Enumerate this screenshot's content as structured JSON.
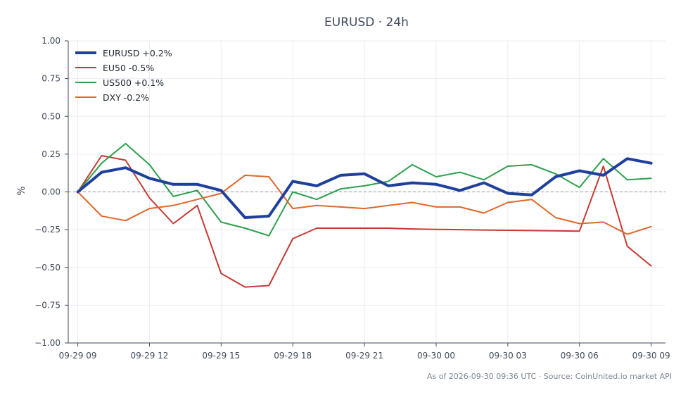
{
  "chart_data": {
    "type": "line",
    "title": "EURUSD · 24h",
    "xlabel": "",
    "ylabel": "%",
    "ylim": [
      -1.0,
      1.0
    ],
    "xlim": [
      "2026-09-29 08:36",
      "2026-09-30 09:36"
    ],
    "yticks": [
      1.0,
      0.75,
      0.5,
      0.25,
      0.0,
      -0.25,
      -0.5,
      -0.75,
      -1.0
    ],
    "ytick_labels": [
      "1.00",
      "0.75",
      "0.50",
      "0.25",
      "0.00",
      "−0.25",
      "−0.50",
      "−0.75",
      "−1.00"
    ],
    "xticks": [
      "2026-09-29 09:00",
      "2026-09-29 12:00",
      "2026-09-29 15:00",
      "2026-09-29 18:00",
      "2026-09-29 21:00",
      "2026-09-30 00:00",
      "2026-09-30 03:00",
      "2026-09-30 06:00",
      "2026-09-30 09:00"
    ],
    "xtick_labels": [
      "09-29 09",
      "09-29 12",
      "09-29 15",
      "09-29 18",
      "09-29 21",
      "09-30 00",
      "09-30 03",
      "09-30 06",
      "09-30 09"
    ],
    "x": [
      "2026-09-29 09:00",
      "2026-09-29 10:00",
      "2026-09-29 11:00",
      "2026-09-29 12:00",
      "2026-09-29 13:00",
      "2026-09-29 14:00",
      "2026-09-29 15:00",
      "2026-09-29 16:00",
      "2026-09-29 17:00",
      "2026-09-29 18:00",
      "2026-09-29 19:00",
      "2026-09-29 20:00",
      "2026-09-29 21:00",
      "2026-09-29 22:00",
      "2026-09-29 23:00",
      "2026-09-30 00:00",
      "2026-09-30 01:00",
      "2026-09-30 02:00",
      "2026-09-30 03:00",
      "2026-09-30 04:00",
      "2026-09-30 05:00",
      "2026-09-30 06:00",
      "2026-09-30 07:00",
      "2026-09-30 08:00",
      "2026-09-30 09:00"
    ],
    "series": [
      {
        "name": "EU50 -0.5%",
        "color": "#c63a33",
        "width": 2,
        "values": [
          0.0,
          0.24,
          0.21,
          -0.04,
          -0.21,
          -0.09,
          -0.54,
          -0.63,
          -0.62,
          -0.31,
          -0.24,
          -0.24,
          -0.24,
          -0.24,
          -0.245,
          -0.248,
          -0.25,
          -0.252,
          -0.254,
          -0.256,
          -0.258,
          -0.26,
          0.17,
          -0.36,
          -0.49
        ]
      },
      {
        "name": "US500 +0.1%",
        "color": "#2ca04c",
        "width": 2,
        "values": [
          0.0,
          0.19,
          0.32,
          0.18,
          -0.03,
          0.01,
          -0.2,
          -0.24,
          -0.29,
          0.0,
          -0.05,
          0.02,
          0.04,
          0.07,
          0.18,
          0.1,
          0.13,
          0.08,
          0.17,
          0.18,
          0.12,
          0.03,
          0.22,
          0.08,
          0.09
        ]
      },
      {
        "name": "DXY -0.2%",
        "color": "#e0672a",
        "width": 2,
        "values": [
          0.0,
          -0.16,
          -0.19,
          -0.11,
          -0.09,
          -0.05,
          -0.01,
          0.11,
          0.1,
          -0.11,
          -0.09,
          -0.1,
          -0.11,
          -0.09,
          -0.07,
          -0.1,
          -0.1,
          -0.14,
          -0.07,
          -0.05,
          -0.17,
          -0.21,
          -0.2,
          -0.28,
          -0.23
        ]
      },
      {
        "name": "EURUSD +0.2%",
        "color": "#1f3f9c",
        "width": 4,
        "values": [
          0.0,
          0.13,
          0.16,
          0.09,
          0.05,
          0.05,
          0.01,
          -0.17,
          -0.16,
          0.07,
          0.04,
          0.11,
          0.12,
          0.04,
          0.06,
          0.05,
          0.01,
          0.06,
          -0.01,
          -0.02,
          0.1,
          0.14,
          0.11,
          0.22,
          0.19
        ]
      }
    ],
    "legend_order": [
      "EURUSD +0.2%",
      "EU50 -0.5%",
      "US500 +0.1%",
      "DXY -0.2%"
    ],
    "legend_position": "top-left",
    "zero_line": true,
    "grid": true,
    "footnote": "As of 2026-09-30 09:36 UTC · Source: CoinUnited.io market API"
  }
}
